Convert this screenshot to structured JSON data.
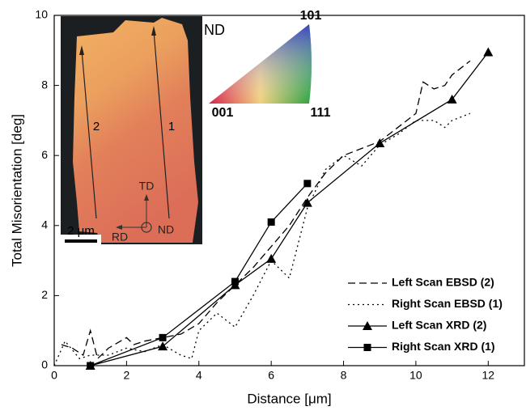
{
  "chart_data": {
    "type": "line",
    "x_label": "Distance [μm]",
    "y_label": "Total Misorientation [deg]",
    "xlim": [
      0,
      13
    ],
    "xticks": [
      0,
      2,
      4,
      6,
      8,
      10,
      12
    ],
    "ylim": [
      0,
      10
    ],
    "yticks": [
      0,
      2,
      4,
      6,
      8,
      10
    ],
    "legend": "lower right",
    "series": [
      {
        "name": "Left Scan EBSD (2)",
        "color": "#000000",
        "line_style": "dashed",
        "marker": "none",
        "x": [
          0.2,
          0.5,
          0.8,
          1.0,
          1.2,
          1.5,
          2.0,
          2.2,
          2.5,
          3.0,
          3.5,
          4.0,
          4.5,
          5.0,
          5.5,
          6.0,
          6.5,
          7.0,
          7.5,
          8.0,
          8.5,
          9.0,
          9.5,
          10.0,
          10.2,
          10.5,
          10.8,
          11.0,
          11.5
        ],
        "values": [
          0.6,
          0.5,
          0.3,
          1.0,
          0.2,
          0.5,
          0.8,
          0.6,
          0.7,
          0.8,
          0.9,
          1.2,
          1.8,
          2.3,
          2.8,
          3.4,
          4.0,
          4.8,
          5.5,
          6.0,
          6.2,
          6.4,
          6.8,
          7.2,
          8.1,
          7.9,
          8.0,
          8.3,
          8.7
        ]
      },
      {
        "name": "Right Scan EBSD (1)",
        "color": "#000000",
        "line_style": "dotted",
        "marker": "none",
        "x": [
          0.0,
          0.3,
          0.7,
          1.0,
          1.5,
          2.0,
          2.5,
          3.0,
          3.5,
          3.8,
          4.0,
          4.5,
          5.0,
          5.5,
          6.0,
          6.5,
          7.0,
          7.5,
          8.0,
          8.5,
          9.0,
          9.5,
          10.0,
          10.5,
          10.8,
          11.0,
          11.5
        ],
        "values": [
          0.0,
          0.7,
          0.2,
          0.3,
          0.3,
          0.5,
          0.4,
          0.6,
          0.3,
          0.2,
          1.0,
          1.5,
          1.1,
          2.0,
          3.0,
          2.5,
          4.5,
          5.6,
          6.0,
          5.7,
          6.3,
          6.6,
          7.0,
          7.0,
          6.8,
          7.0,
          7.2
        ]
      },
      {
        "name": "Left Scan XRD (2)",
        "color": "#000000",
        "line_style": "solid",
        "marker": "triangle",
        "x": [
          1,
          3,
          5,
          6,
          7,
          9,
          11,
          12
        ],
        "values": [
          0.0,
          0.55,
          2.3,
          3.05,
          4.65,
          6.35,
          7.6,
          8.95
        ]
      },
      {
        "name": "Right Scan XRD (1)",
        "color": "#000000",
        "line_style": "solid",
        "marker": "square",
        "x": [
          1,
          3,
          5,
          6,
          7
        ],
        "values": [
          0.0,
          0.8,
          2.4,
          4.1,
          5.2
        ]
      }
    ],
    "annotations": [
      "2",
      "1",
      "TD",
      "RD",
      "ND",
      "2 μm",
      "ND",
      "101",
      "001",
      "111"
    ]
  }
}
